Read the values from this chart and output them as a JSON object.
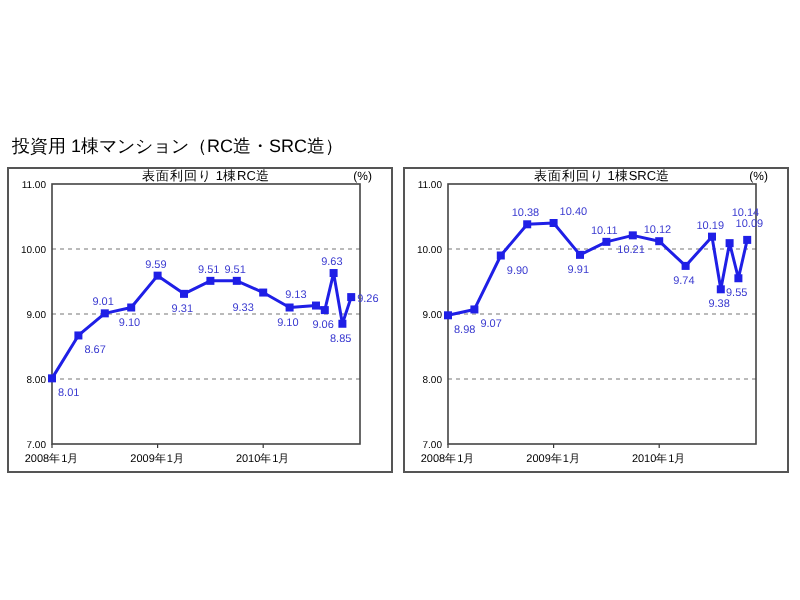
{
  "chart_data": [
    {
      "type": "line",
      "title": "表面利回り 1棟RC造",
      "annotations": [
        "投資用 1棟マンション（RC造・SRC造）",
        "(%)"
      ],
      "x": [
        "2008-01",
        "2008-04",
        "2008-07",
        "2008-10",
        "2009-01",
        "2009-04",
        "2009-07",
        "2009-10",
        "2010-01",
        "2010-04",
        "2010-07",
        "2010-08",
        "2010-09",
        "2010-10",
        "2010-11"
      ],
      "series": [
        {
          "color": "#1f1fe6",
          "values": [
            8.01,
            8.67,
            9.01,
            9.1,
            9.59,
            9.31,
            9.51,
            9.51,
            9.33,
            9.1,
            9.13,
            9.06,
            9.63,
            8.85,
            9.26
          ],
          "value_labels": [
            "8.01",
            "8.67",
            "9.01",
            "9.10",
            "9.59",
            "9.31",
            "9.51",
            "9.51",
            "9.33",
            "9.10",
            "9.13",
            "9.06",
            "9.63",
            "8.85",
            "9.26"
          ]
        }
      ],
      "xlim": [
        "2008-01",
        "2010-12"
      ],
      "xticks": [
        {
          "value": "2008-01",
          "label": "2008年1月"
        },
        {
          "value": "2009-01",
          "label": "2009年1月"
        },
        {
          "value": "2010-01",
          "label": "2010年1月"
        }
      ],
      "ylim": [
        7,
        11
      ],
      "yticks": [
        {
          "value": 7,
          "label": "7.00"
        },
        {
          "value": 8,
          "label": "8.00"
        },
        {
          "value": 9,
          "label": "9.00"
        },
        {
          "value": 10,
          "label": "10.00"
        },
        {
          "value": 11,
          "label": "11.00"
        }
      ],
      "grid": "y",
      "marker": "square",
      "line_style": "solid"
    },
    {
      "type": "line",
      "title": "表面利回り 1棟SRC造",
      "annotations": [
        "(%)"
      ],
      "x": [
        "2008-01",
        "2008-04",
        "2008-07",
        "2008-10",
        "2009-01",
        "2009-04",
        "2009-07",
        "2009-10",
        "2010-01",
        "2010-04",
        "2010-07",
        "2010-08",
        "2010-09",
        "2010-10",
        "2010-11"
      ],
      "series": [
        {
          "color": "#1f1fe6",
          "values": [
            8.98,
            9.07,
            9.9,
            10.38,
            10.4,
            9.91,
            10.11,
            10.21,
            10.12,
            9.74,
            10.19,
            9.38,
            10.09,
            9.55,
            10.14
          ],
          "value_labels": [
            "8.98",
            "9.07",
            "9.90",
            "10.38",
            "10.40",
            "9.91",
            "10.11",
            "10.21",
            "10.12",
            "9.74",
            "10.19",
            "9.38",
            "10.09",
            "9.55",
            "10.14"
          ]
        }
      ],
      "xlim": [
        "2008-01",
        "2010-12"
      ],
      "xticks": [
        {
          "value": "2008-01",
          "label": "2008年1月"
        },
        {
          "value": "2009-01",
          "label": "2009年1月"
        },
        {
          "value": "2010-01",
          "label": "2010年1月"
        }
      ],
      "ylim": [
        7,
        11
      ],
      "yticks": [
        {
          "value": 7,
          "label": "7.00"
        },
        {
          "value": 8,
          "label": "8.00"
        },
        {
          "value": 9,
          "label": "9.00"
        },
        {
          "value": 10,
          "label": "10.00"
        },
        {
          "value": 11,
          "label": "11.00"
        }
      ],
      "grid": "y",
      "marker": "square",
      "line_style": "solid"
    }
  ]
}
